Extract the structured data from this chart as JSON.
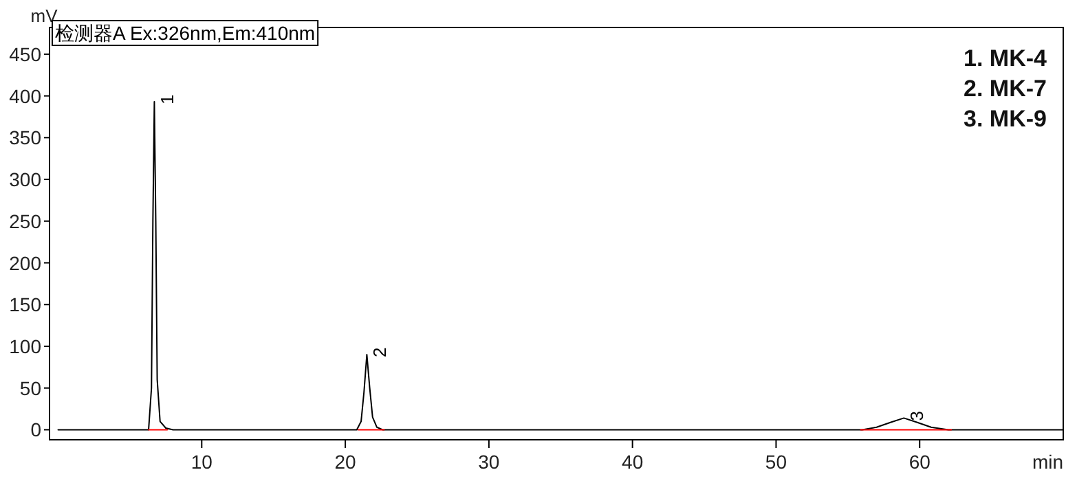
{
  "chart_data": {
    "type": "line",
    "title": "检测器A Ex:326nm,Em:410nm",
    "xlabel": "min",
    "ylabel": "mV",
    "xlim": [
      -0.6,
      70
    ],
    "ylim": [
      -12,
      482
    ],
    "xticks": [
      10,
      20,
      30,
      40,
      50,
      60
    ],
    "yticks": [
      0,
      50,
      100,
      150,
      200,
      250,
      300,
      350,
      400,
      450
    ],
    "grid": false,
    "marker": "none",
    "series": [
      {
        "color": "#000000",
        "x": [
          0,
          6.3,
          6.5,
          6.6,
          6.7,
          6.8,
          6.9,
          7.1,
          7.5,
          8,
          20.8,
          21.1,
          21.3,
          21.5,
          21.7,
          21.9,
          22.2,
          22.6,
          56,
          57,
          58,
          58.9,
          59.8,
          60.8,
          62,
          70
        ],
        "values": [
          0,
          0,
          50,
          250,
          393,
          250,
          60,
          10,
          2,
          0,
          0,
          10,
          45,
          90,
          50,
          15,
          3,
          0,
          0,
          3,
          9,
          14,
          9,
          3,
          0,
          0
        ]
      },
      {
        "color": "#ff0000",
        "x": [
          6.3,
          7.6
        ],
        "values": [
          0,
          0
        ]
      },
      {
        "color": "#ff0000",
        "x": [
          20.9,
          22.7
        ],
        "values": [
          0,
          0
        ]
      },
      {
        "color": "#ff0000",
        "x": [
          55.9,
          62.2
        ],
        "values": [
          0,
          0
        ]
      }
    ],
    "annotations": [
      {
        "text": "1",
        "x": 6.7,
        "y": 393
      },
      {
        "text": "2",
        "x": 21.5,
        "y": 90
      },
      {
        "text": "3",
        "x": 58.9,
        "y": 14
      },
      "1. MK-4",
      "2. MK-7",
      "3. MK-9"
    ]
  }
}
